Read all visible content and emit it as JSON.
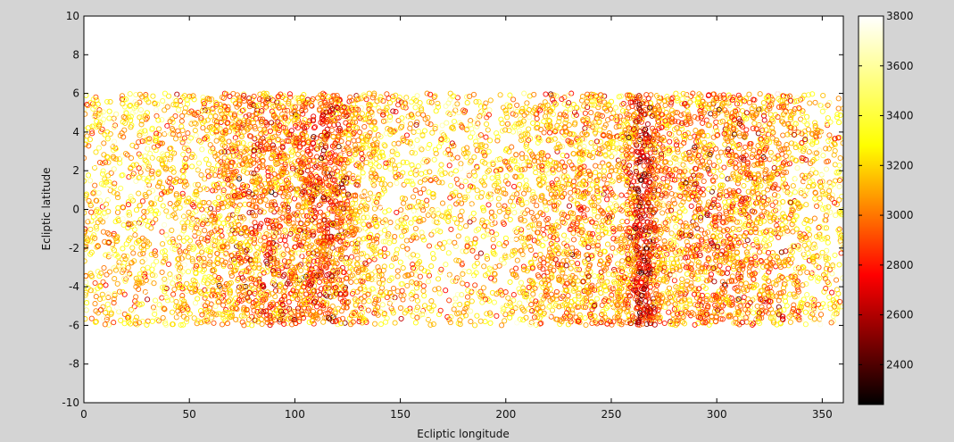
{
  "figure": {
    "background": "#d4d4d4",
    "axes_background": "#ffffff"
  },
  "chart_data": {
    "type": "scatter",
    "marker": "open-circle",
    "xlabel": "Ecliptic longitude",
    "ylabel": "Ecliptic latitude",
    "xlim": [
      0,
      360
    ],
    "ylim": [
      -10,
      10
    ],
    "x_ticks": [
      0,
      50,
      100,
      150,
      200,
      250,
      300,
      350
    ],
    "y_ticks": [
      -10,
      -8,
      -6,
      -4,
      -2,
      0,
      2,
      4,
      6,
      8,
      10
    ],
    "grid": false,
    "point_region": {
      "x_range": [
        0,
        360
      ],
      "y_range": [
        -6,
        6
      ]
    },
    "colorbar": {
      "colormap": "hot",
      "range": [
        2240,
        3800
      ],
      "ticks": [
        2400,
        2600,
        2800,
        3000,
        3200,
        3400,
        3600,
        3800
      ],
      "stops": [
        "#000000",
        "#ff0000",
        "#ffff00",
        "#ffffff"
      ]
    },
    "density_features": [
      {
        "x_center": 92,
        "width": 40,
        "strength": 0.55,
        "value_shift": -260
      },
      {
        "x_center": 118,
        "width": 14,
        "strength": 0.45,
        "value_shift": -220
      },
      {
        "x_center": 235,
        "width": 30,
        "strength": 0.4,
        "value_shift": -160
      },
      {
        "x_center": 265,
        "width": 8,
        "strength": 0.9,
        "value_shift": -520
      },
      {
        "x_center": 300,
        "width": 28,
        "strength": 0.45,
        "value_shift": -240
      },
      {
        "x_center": 325,
        "width": 14,
        "strength": 0.25,
        "value_shift": -120
      }
    ],
    "n_points": 9000
  }
}
